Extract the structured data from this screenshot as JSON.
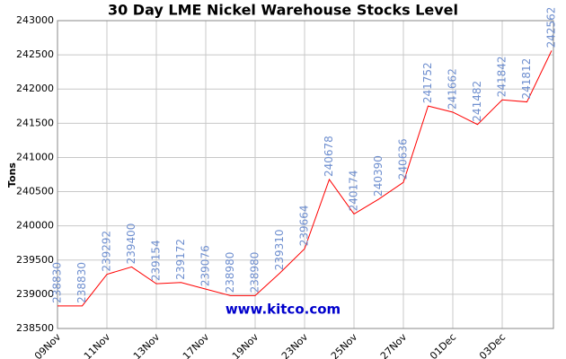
{
  "chart_data": {
    "type": "line",
    "title": "30 Day LME Nickel Warehouse Stocks Level",
    "y_label": "Tons",
    "watermark": "www.kitco.com",
    "categories": [
      "09Nov",
      null,
      "11Nov",
      null,
      "13Nov",
      null,
      "17Nov",
      null,
      "19Nov",
      null,
      "23Nov",
      null,
      "25Nov",
      null,
      "27Nov",
      null,
      "01Dec",
      null,
      "03Dec",
      null,
      null
    ],
    "values": [
      238830,
      238830,
      239292,
      239400,
      239154,
      239172,
      239076,
      238980,
      238980,
      239310,
      239664,
      240678,
      240174,
      240390,
      240636,
      241752,
      241662,
      241482,
      241842,
      241812,
      242562
    ],
    "color": "#ff0000",
    "label_color": "#6f8fcf",
    "ylim": [
      238500,
      243000
    ],
    "yticks": [
      238500,
      239000,
      239500,
      240000,
      240500,
      241000,
      241500,
      242000,
      242500,
      243000
    ],
    "grid": true
  }
}
